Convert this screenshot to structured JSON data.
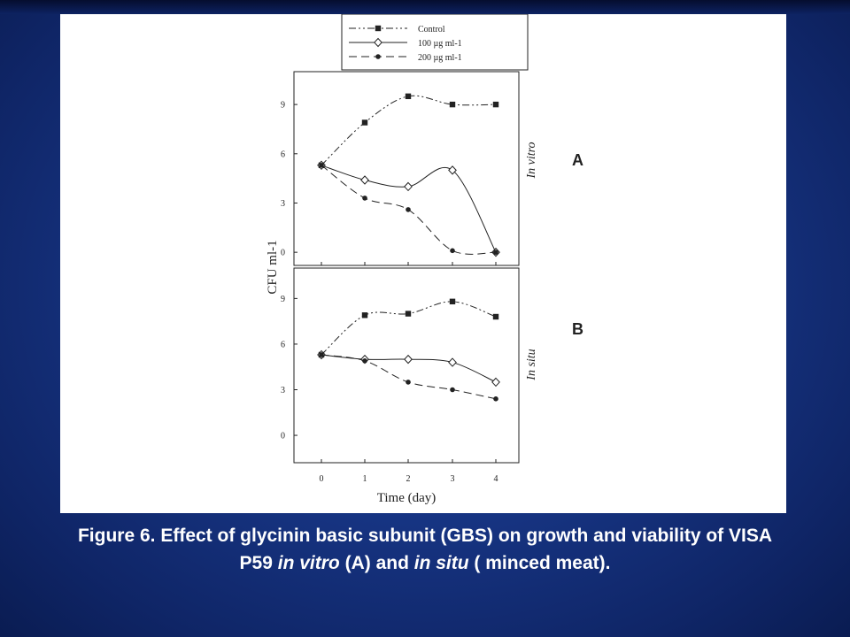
{
  "legend": [
    {
      "label": "Control",
      "line": "dash-dot-dot",
      "marker": "square-filled"
    },
    {
      "label": "100 µg ml-1",
      "line": "solid",
      "marker": "diamond-open"
    },
    {
      "label": "200 µg ml-1",
      "line": "dashed",
      "marker": "circle-filled"
    }
  ],
  "chart_data": [
    {
      "type": "line",
      "panel_label": "A",
      "side_label": "In vitro",
      "ylabel": "CFU ml-1",
      "xlabel": "",
      "x": [
        0,
        1,
        2,
        3,
        4
      ],
      "ylim": [
        -0.8,
        11
      ],
      "yticks": [
        "0",
        "3",
        "6",
        "9"
      ],
      "xticks": [],
      "grid": false,
      "series": [
        {
          "name": "Control",
          "values": [
            5.3,
            7.9,
            9.5,
            9.0,
            9.0
          ]
        },
        {
          "name": "100 µg ml-1",
          "values": [
            5.3,
            4.4,
            4.0,
            5.0,
            0.0
          ]
        },
        {
          "name": "200 µg ml-1",
          "values": [
            5.3,
            3.3,
            2.6,
            0.1,
            0.0
          ]
        }
      ]
    },
    {
      "type": "line",
      "panel_label": "B",
      "side_label": "In situ",
      "ylabel": "",
      "xlabel": "Time (day)",
      "x": [
        0,
        1,
        2,
        3,
        4
      ],
      "ylim": [
        -1.8,
        11
      ],
      "yticks": [
        "0",
        "3",
        "6",
        "9"
      ],
      "xticks": [
        "0",
        "1",
        "2",
        "3",
        "4"
      ],
      "grid": false,
      "series": [
        {
          "name": "Control",
          "values": [
            5.3,
            7.9,
            8.0,
            8.8,
            7.8
          ]
        },
        {
          "name": "100 µg ml-1",
          "values": [
            5.3,
            5.0,
            5.0,
            4.8,
            3.5
          ]
        },
        {
          "name": "200 µg ml-1",
          "values": [
            5.3,
            4.9,
            3.5,
            3.0,
            2.4
          ]
        }
      ]
    }
  ],
  "caption": {
    "part1": "Figure 6. Effect of glycinin basic subunit (GBS)  on growth and viability of VISA P59 ",
    "em1": "in vitro",
    "part2": " (A) and ",
    "em2": "in situ",
    "part3": " ( minced meat)."
  },
  "colors": {
    "background": "#173584",
    "figure": "#ffffff",
    "ink": "#222222",
    "caption": "#ffffff"
  }
}
